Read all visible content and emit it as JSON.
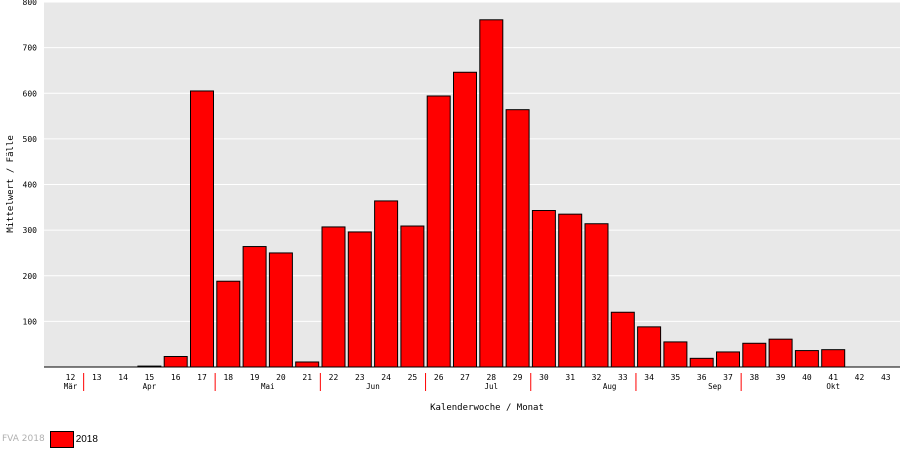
{
  "chart_data": {
    "type": "bar",
    "xlabel": "Kalenderwoche / Monat",
    "ylabel": "Mittelwert / Fälle",
    "ylim": [
      0,
      800
    ],
    "yticks": [
      100,
      200,
      300,
      400,
      500,
      600,
      700,
      800
    ],
    "grid": true,
    "categories": [
      "12",
      "13",
      "14",
      "15",
      "16",
      "17",
      "18",
      "19",
      "20",
      "21",
      "22",
      "23",
      "24",
      "25",
      "26",
      "27",
      "28",
      "29",
      "30",
      "31",
      "32",
      "33",
      "34",
      "35",
      "36",
      "37",
      "38",
      "39",
      "40",
      "41",
      "42",
      "43"
    ],
    "highlight_colors": {
      "40": "#cc0000",
      "41": "#008800"
    },
    "months": [
      {
        "label": "Mär",
        "at_week": "12"
      },
      {
        "label": "Apr",
        "at_week": "15"
      },
      {
        "label": "Mai",
        "at_week": "19.5"
      },
      {
        "label": "Jun",
        "at_week": "23.5"
      },
      {
        "label": "Jul",
        "at_week": "28"
      },
      {
        "label": "Aug",
        "at_week": "32.5"
      },
      {
        "label": "Sep",
        "at_week": "36.5"
      },
      {
        "label": "Okt",
        "at_week": "41"
      }
    ],
    "month_separators": [
      "12.5",
      "17.5",
      "21.5",
      "25.5",
      "29.5",
      "33.5",
      "37.5"
    ],
    "series": [
      {
        "name": "2018",
        "color": "#ff0000",
        "values": [
          0,
          0,
          0,
          2,
          23,
          605,
          188,
          264,
          250,
          11,
          307,
          296,
          364,
          309,
          594,
          646,
          761,
          564,
          343,
          335,
          314,
          120,
          88,
          55,
          19,
          33,
          52,
          61,
          36,
          38,
          0,
          0
        ]
      }
    ]
  },
  "footer": {
    "credit": "FVA 2018",
    "legend_label": "2018",
    "legend_color": "#ff0000"
  }
}
